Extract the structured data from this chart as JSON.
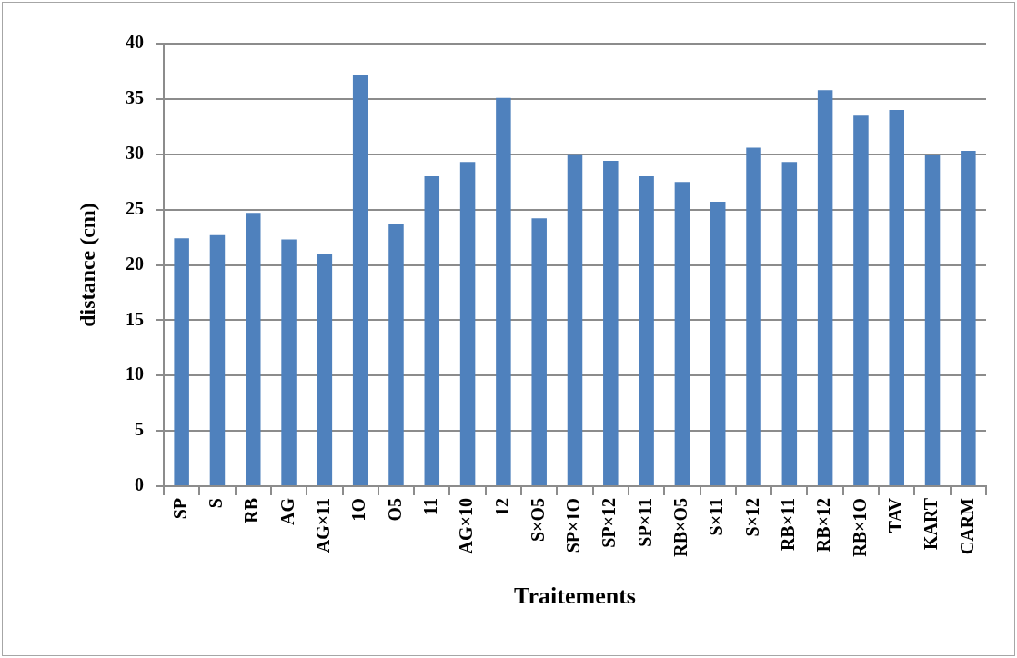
{
  "chart_data": {
    "type": "bar",
    "xlabel": "Traitements",
    "ylabel": "distance (cm)",
    "categories": [
      "SP",
      "S",
      "RB",
      "AG",
      "AG×11",
      "1O",
      "O5",
      "11",
      "AG×10",
      "12",
      "S×O5",
      "SP×1O",
      "SP×12",
      "SP×11",
      "RB×O5",
      "S×11",
      "S×12",
      "RB×11",
      "RB×12",
      "RB×1O",
      "TAV",
      "KART",
      "CARM"
    ],
    "values": [
      22.4,
      22.7,
      24.7,
      22.3,
      21.0,
      37.2,
      23.7,
      28.0,
      29.3,
      35.1,
      24.2,
      30.0,
      29.4,
      28.0,
      27.5,
      25.7,
      30.6,
      29.3,
      35.8,
      33.5,
      34.0,
      29.9,
      30.3
    ],
    "color": "#4f81bd",
    "ylim": [
      0,
      40
    ],
    "yticks": [
      0,
      5,
      10,
      15,
      20,
      25,
      30,
      35,
      40
    ],
    "grid": "y"
  }
}
